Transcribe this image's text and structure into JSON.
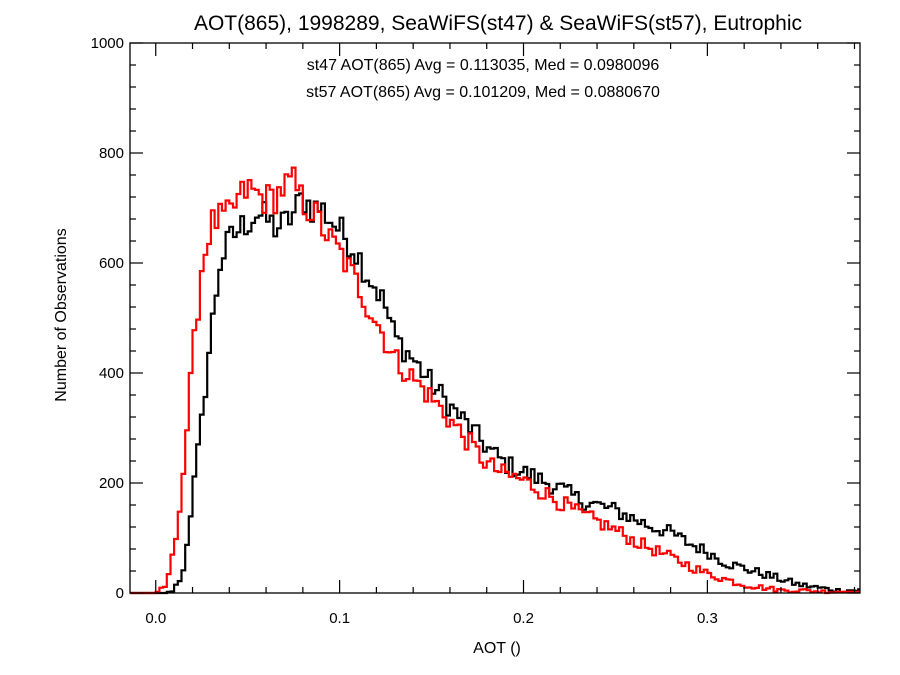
{
  "chart_data": {
    "type": "line",
    "title": "AOT(865), 1998289, SeaWiFS(st47) & SeaWiFS(st57), Eutrophic",
    "xlabel": "AOT ()",
    "ylabel": "Number of Observations",
    "xlim": [
      -0.014,
      0.383
    ],
    "ylim": [
      0,
      1000
    ],
    "xticks": [
      0.0,
      0.1,
      0.2,
      0.3
    ],
    "xtick_labels": [
      "0.0",
      "0.1",
      "0.2",
      "0.3"
    ],
    "yticks": [
      0,
      200,
      400,
      600,
      800,
      1000
    ],
    "ytick_labels": [
      "0",
      "200",
      "400",
      "600",
      "800",
      "1000"
    ],
    "grid": false,
    "step": "histogram",
    "bin_width": 0.002,
    "annotations": [
      {
        "text": "st47 AOT(865) Avg = 0.113035, Med = 0.0980096",
        "color": "#000000"
      },
      {
        "text": "st57 AOT(865) Avg = 0.101209, Med = 0.0880670",
        "color": "#ff0000"
      }
    ],
    "series": [
      {
        "color": "#000000",
        "x": [
          0.0,
          0.005,
          0.01,
          0.015,
          0.02,
          0.025,
          0.03,
          0.035,
          0.04,
          0.045,
          0.05,
          0.055,
          0.06,
          0.065,
          0.07,
          0.075,
          0.08,
          0.085,
          0.09,
          0.095,
          0.1,
          0.105,
          0.11,
          0.115,
          0.12,
          0.125,
          0.13,
          0.14,
          0.15,
          0.16,
          0.17,
          0.18,
          0.19,
          0.2,
          0.21,
          0.22,
          0.23,
          0.24,
          0.25,
          0.26,
          0.27,
          0.28,
          0.29,
          0.3,
          0.31,
          0.32,
          0.33,
          0.34,
          0.35,
          0.36,
          0.37,
          0.383
        ],
        "y": [
          0,
          0,
          5,
          40,
          175,
          310,
          470,
          600,
          640,
          660,
          675,
          690,
          680,
          665,
          670,
          690,
          720,
          700,
          700,
          680,
          660,
          640,
          615,
          580,
          555,
          520,
          465,
          425,
          380,
          340,
          305,
          265,
          235,
          220,
          205,
          190,
          170,
          160,
          150,
          135,
          120,
          110,
          90,
          75,
          55,
          45,
          35,
          25,
          15,
          10,
          5,
          5
        ]
      },
      {
        "color": "#ff0000",
        "x": [
          0.0,
          0.005,
          0.01,
          0.015,
          0.02,
          0.025,
          0.03,
          0.035,
          0.04,
          0.045,
          0.05,
          0.055,
          0.06,
          0.065,
          0.07,
          0.075,
          0.08,
          0.085,
          0.09,
          0.095,
          0.1,
          0.105,
          0.11,
          0.115,
          0.12,
          0.125,
          0.13,
          0.14,
          0.15,
          0.16,
          0.17,
          0.18,
          0.19,
          0.2,
          0.21,
          0.22,
          0.23,
          0.24,
          0.25,
          0.26,
          0.27,
          0.28,
          0.29,
          0.3,
          0.31,
          0.32,
          0.33,
          0.34,
          0.35,
          0.36,
          0.37,
          0.383
        ],
        "y": [
          0,
          10,
          75,
          220,
          420,
          590,
          670,
          680,
          685,
          715,
          735,
          725,
          715,
          720,
          740,
          745,
          710,
          695,
          670,
          640,
          620,
          590,
          560,
          525,
          495,
          460,
          425,
          390,
          355,
          315,
          275,
          235,
          215,
          205,
          185,
          165,
          145,
          130,
          115,
          95,
          80,
          65,
          50,
          35,
          25,
          15,
          10,
          5,
          5,
          3,
          2,
          2
        ]
      }
    ]
  }
}
